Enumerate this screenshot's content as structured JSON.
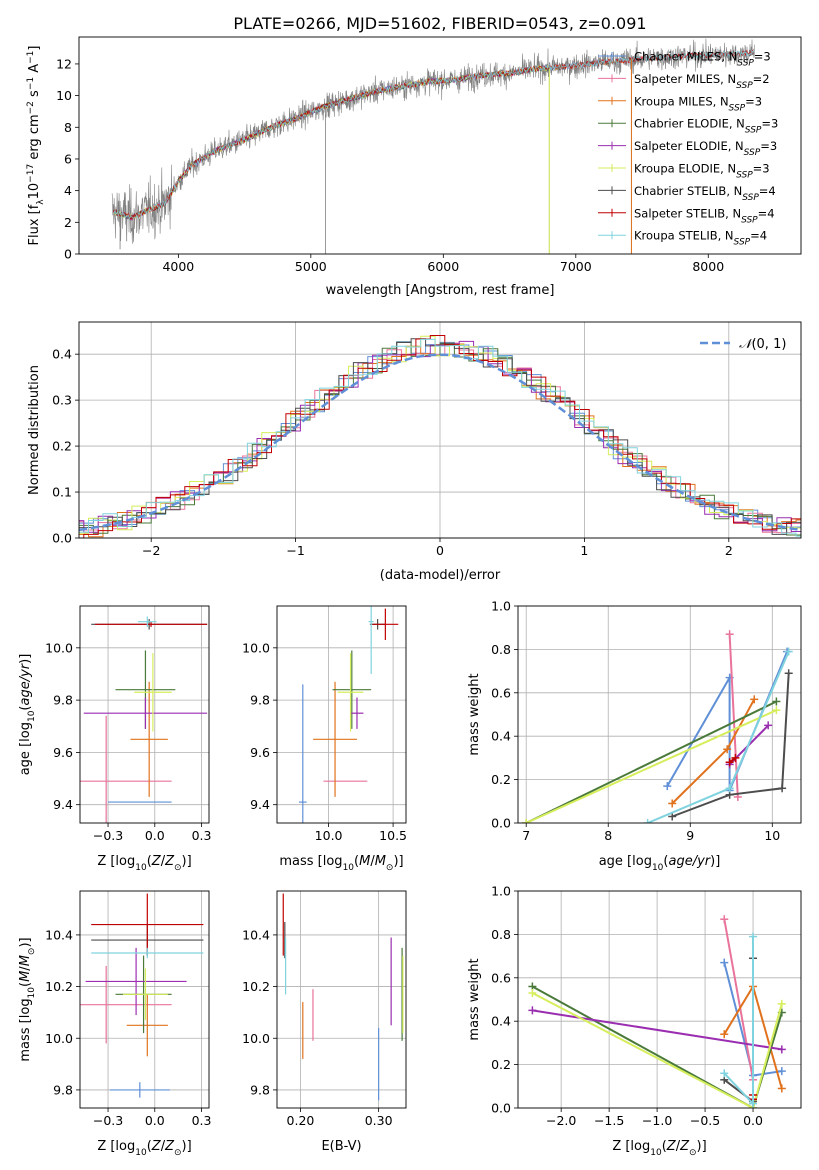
{
  "figure_title": "PLATE=0266, MJD=51602, FIBERID=0543, z=0.091",
  "colors": {
    "Chabrier MILES": "#5f8fd6",
    "Salpeter MILES": "#e8739b",
    "Kroupa MILES": "#e0721d",
    "Chabrier ELODIE": "#4a7a3a",
    "Salpeter ELODIE": "#9a2db0",
    "Kroupa ELODIE": "#d6ee5c",
    "Chabrier STELIB": "#4d4d4d",
    "Salpeter STELIB": "#c00000",
    "Kroupa STELIB": "#7fd3df",
    "data": "#808080",
    "normal": "#5f8fd6"
  },
  "chart_data": [
    {
      "id": "spectrum",
      "type": "line",
      "title": "PLATE=0266, MJD=51602, FIBERID=0543, z=0.091",
      "xlabel": "wavelength [Angstrom, rest frame]",
      "ylabel": "Flux [f_λ 10^-17 erg cm^-2 s^-1 A^-1]",
      "xlim": [
        3250,
        8700
      ],
      "ylim": [
        0,
        13.7
      ],
      "xticks": [
        4000,
        5000,
        6000,
        7000,
        8000
      ],
      "yticks": [
        0,
        2,
        4,
        6,
        8,
        10,
        12
      ],
      "grid": false,
      "legend_position": "upper-right",
      "legend": [
        {
          "base": "Chabrier MILES, N",
          "sub": "SSP",
          "tail": "=3",
          "series": "Chabrier MILES"
        },
        {
          "base": "Salpeter MILES, N",
          "sub": "SSP",
          "tail": "=2",
          "series": "Salpeter MILES"
        },
        {
          "base": "Kroupa MILES, N",
          "sub": "SSP",
          "tail": "=3",
          "series": "Kroupa MILES"
        },
        {
          "base": "Chabrier ELODIE, N",
          "sub": "SSP",
          "tail": "=3",
          "series": "Chabrier ELODIE"
        },
        {
          "base": "Salpeter ELODIE, N",
          "sub": "SSP",
          "tail": "=3",
          "series": "Salpeter ELODIE"
        },
        {
          "base": "Kroupa ELODIE, N",
          "sub": "SSP",
          "tail": "=3",
          "series": "Kroupa ELODIE"
        },
        {
          "base": "Chabrier STELIB, N",
          "sub": "SSP",
          "tail": "=4",
          "series": "Chabrier STELIB"
        },
        {
          "base": "Salpeter STELIB, N",
          "sub": "SSP",
          "tail": "=4",
          "series": "Salpeter STELIB"
        },
        {
          "base": "Kroupa STELIB, N",
          "sub": "SSP",
          "tail": "=4",
          "series": "Kroupa STELIB"
        }
      ],
      "continuum": [
        [
          3500,
          2.7
        ],
        [
          3650,
          2.3
        ],
        [
          3750,
          2.7
        ],
        [
          3900,
          3.2
        ],
        [
          4000,
          4.6
        ],
        [
          4100,
          5.6
        ],
        [
          4300,
          6.6
        ],
        [
          4500,
          7.2
        ],
        [
          4700,
          8.0
        ],
        [
          4900,
          8.6
        ],
        [
          5100,
          9.3
        ],
        [
          5300,
          9.8
        ],
        [
          5500,
          10.3
        ],
        [
          5700,
          10.6
        ],
        [
          5900,
          10.9
        ],
        [
          6100,
          11.0
        ],
        [
          6300,
          11.3
        ],
        [
          6500,
          11.4
        ],
        [
          6700,
          11.7
        ],
        [
          6900,
          11.8
        ],
        [
          7200,
          12.1
        ],
        [
          7500,
          12.3
        ],
        [
          7800,
          12.5
        ],
        [
          8100,
          12.6
        ],
        [
          8350,
          12.7
        ]
      ],
      "spikes": [
        [
          5110,
          0
        ],
        [
          6800,
          0
        ],
        [
          7420,
          0
        ],
        [
          3560,
          0.3
        ],
        [
          3610,
          0.8
        ]
      ]
    },
    {
      "id": "residuals",
      "type": "histogram",
      "xlabel": "(data-model)/error",
      "ylabel": "Normed distribution",
      "xlim": [
        -2.5,
        2.5
      ],
      "ylim": [
        0,
        0.47
      ],
      "xticks": [
        -2,
        -1,
        0,
        1,
        2
      ],
      "yticks": [
        0,
        0.1,
        0.2,
        0.3,
        0.4
      ],
      "grid": true,
      "legend_position": "upper-right",
      "normal_label": "N(0,1)",
      "bin_width": 0.1
    },
    {
      "id": "age_vs_Z",
      "type": "errorbar",
      "xlabel": "Z [log10(Z/Z_sun)]",
      "ylabel": "age [log10(age/yr)]",
      "xlim": [
        -0.4,
        0.29
      ],
      "ylim": [
        9.33,
        10.16
      ],
      "xticks": [
        -0.25,
        0.0,
        0.25
      ],
      "yticks": [
        9.4,
        9.6,
        9.8,
        10.0
      ],
      "grid": true,
      "points": [
        {
          "series": "Chabrier MILES",
          "x": -0.08,
          "xerr": 0.17,
          "y": 9.41,
          "yerr": 0.0
        },
        {
          "series": "Salpeter MILES",
          "x": -0.26,
          "xerr": 0.35,
          "y": 9.49,
          "yerr": 0.25
        },
        {
          "series": "Kroupa MILES",
          "x": -0.03,
          "xerr": 0.1,
          "y": 9.65,
          "yerr": 0.22
        },
        {
          "series": "Chabrier ELODIE",
          "x": -0.05,
          "xerr": 0.16,
          "y": 9.84,
          "yerr": 0.15
        },
        {
          "series": "Salpeter ELODIE",
          "x": -0.05,
          "xerr": 0.33,
          "y": 9.75,
          "yerr": 0.06
        },
        {
          "series": "Kroupa ELODIE",
          "x": -0.01,
          "xerr": 0.1,
          "y": 9.83,
          "yerr": 0.15
        },
        {
          "series": "Chabrier STELIB",
          "x": -0.03,
          "xerr": 0.31,
          "y": 10.09,
          "yerr": 0.02
        },
        {
          "series": "Salpeter STELIB",
          "x": -0.02,
          "xerr": 0.3,
          "y": 10.09,
          "yerr": 0.01
        },
        {
          "series": "Kroupa STELIB",
          "x": -0.04,
          "xerr": 0.05,
          "y": 10.1,
          "yerr": 0.02
        }
      ]
    },
    {
      "id": "age_vs_mass",
      "type": "errorbar",
      "xlabel": "mass [log10(M/M_sun)]",
      "ylabel": "",
      "xlim": [
        9.6,
        10.6
      ],
      "ylim": [
        9.33,
        10.16
      ],
      "xticks": [
        10.0,
        10.5
      ],
      "yticks": [
        9.4,
        9.6,
        9.8,
        10.0
      ],
      "grid": true,
      "points": [
        {
          "series": "Chabrier MILES",
          "x": 9.8,
          "xerr": 0.03,
          "y": 9.41,
          "yerr": 0.45
        },
        {
          "series": "Salpeter MILES",
          "x": 10.13,
          "xerr": 0.17,
          "y": 9.49,
          "yerr": 0.0
        },
        {
          "series": "Kroupa MILES",
          "x": 10.05,
          "xerr": 0.17,
          "y": 9.65,
          "yerr": 0.22
        },
        {
          "series": "Chabrier ELODIE",
          "x": 10.18,
          "xerr": 0.15,
          "y": 9.84,
          "yerr": 0.15
        },
        {
          "series": "Salpeter ELODIE",
          "x": 10.22,
          "xerr": 0.05,
          "y": 9.75,
          "yerr": 0.06
        },
        {
          "series": "Kroupa ELODIE",
          "x": 10.17,
          "xerr": 0.1,
          "y": 9.83,
          "yerr": 0.15
        },
        {
          "series": "Chabrier STELIB",
          "x": 10.38,
          "xerr": 0.06,
          "y": 10.09,
          "yerr": 0.02
        },
        {
          "series": "Salpeter STELIB",
          "x": 10.44,
          "xerr": 0.1,
          "y": 10.09,
          "yerr": 0.06
        },
        {
          "series": "Kroupa STELIB",
          "x": 10.33,
          "xerr": 0.02,
          "y": 10.1,
          "yerr": 0.2
        }
      ]
    },
    {
      "id": "weight_vs_age",
      "type": "line",
      "xlabel": "age [log10(age/yr)]",
      "ylabel": "mass weight",
      "xlim": [
        6.9,
        10.35
      ],
      "ylim": [
        0,
        1.0
      ],
      "xticks": [
        7,
        8,
        9,
        10
      ],
      "yticks": [
        0.0,
        0.2,
        0.4,
        0.6,
        0.8,
        1.0
      ],
      "grid": true,
      "series": [
        {
          "name": "Chabrier MILES",
          "points": [
            [
              8.72,
              0.17
            ],
            [
              9.48,
              0.67
            ],
            [
              9.48,
              0.15
            ],
            [
              10.18,
              0.79
            ]
          ]
        },
        {
          "name": "Salpeter MILES",
          "points": [
            [
              9.48,
              0.87
            ],
            [
              9.58,
              0.12
            ]
          ]
        },
        {
          "name": "Kroupa MILES",
          "points": [
            [
              8.78,
              0.09
            ],
            [
              9.45,
              0.34
            ],
            [
              9.78,
              0.57
            ]
          ]
        },
        {
          "name": "Chabrier ELODIE",
          "points": [
            [
              7.0,
              0.0
            ],
            [
              10.05,
              0.56
            ]
          ]
        },
        {
          "name": "Salpeter ELODIE",
          "points": [
            [
              9.48,
              0.27
            ],
            [
              9.95,
              0.45
            ]
          ]
        },
        {
          "name": "Kroupa ELODIE",
          "points": [
            [
              7.0,
              0.0
            ],
            [
              10.05,
              0.52
            ]
          ]
        },
        {
          "name": "Chabrier STELIB",
          "points": [
            [
              8.78,
              0.03
            ],
            [
              9.48,
              0.13
            ],
            [
              10.12,
              0.16
            ],
            [
              10.2,
              0.69
            ]
          ]
        },
        {
          "name": "Salpeter STELIB",
          "points": [
            [
              9.48,
              0.28
            ],
            [
              9.55,
              0.3
            ]
          ]
        },
        {
          "name": "Kroupa STELIB",
          "points": [
            [
              8.48,
              0.0
            ],
            [
              9.48,
              0.16
            ],
            [
              10.2,
              0.79
            ]
          ]
        }
      ]
    },
    {
      "id": "mass_vs_Z",
      "type": "errorbar",
      "xlabel": "Z [log10(Z/Z_sun)]",
      "ylabel": "mass [log10(M/M_sun)]",
      "xlim": [
        -0.4,
        0.29
      ],
      "ylim": [
        9.73,
        10.57
      ],
      "xticks": [
        -0.25,
        0.0,
        0.25
      ],
      "yticks": [
        9.8,
        10.0,
        10.2,
        10.4
      ],
      "grid": true,
      "points": [
        {
          "series": "Chabrier MILES",
          "x": -0.08,
          "xerr": 0.16,
          "y": 9.8,
          "yerr": 0.03
        },
        {
          "series": "Salpeter MILES",
          "x": -0.26,
          "xerr": 0.35,
          "y": 10.13,
          "yerr": 0.15
        },
        {
          "series": "Kroupa MILES",
          "x": -0.04,
          "xerr": 0.11,
          "y": 10.05,
          "yerr": 0.12
        },
        {
          "series": "Chabrier ELODIE",
          "x": -0.06,
          "xerr": 0.15,
          "y": 10.17,
          "yerr": 0.15
        },
        {
          "series": "Salpeter ELODIE",
          "x": -0.1,
          "xerr": 0.27,
          "y": 10.22,
          "yerr": 0.13
        },
        {
          "series": "Kroupa ELODIE",
          "x": -0.05,
          "xerr": 0.12,
          "y": 10.17,
          "yerr": 0.1
        },
        {
          "series": "Chabrier STELIB",
          "x": -0.04,
          "xerr": 0.3,
          "y": 10.38,
          "yerr": 0.06
        },
        {
          "series": "Salpeter STELIB",
          "x": -0.04,
          "xerr": 0.3,
          "y": 10.44,
          "yerr": 0.12
        },
        {
          "series": "Kroupa STELIB",
          "x": -0.04,
          "xerr": 0.3,
          "y": 10.33,
          "yerr": 0.02
        }
      ]
    },
    {
      "id": "mass_vs_EBV",
      "type": "errorbar",
      "xlabel": "E(B-V)",
      "ylabel": "",
      "xlim": [
        0.17,
        0.335
      ],
      "ylim": [
        9.73,
        10.57
      ],
      "xticks": [
        0.2,
        0.3
      ],
      "yticks": [
        9.8,
        10.0,
        10.2,
        10.4
      ],
      "grid": true,
      "points": [
        {
          "series": "Chabrier MILES",
          "x": 0.3,
          "xerr": 0.0,
          "y": 9.9,
          "yerr": 0.14
        },
        {
          "series": "Salpeter MILES",
          "x": 0.216,
          "xerr": 0.0,
          "y": 10.09,
          "yerr": 0.1
        },
        {
          "series": "Kroupa MILES",
          "x": 0.203,
          "xerr": 0.0,
          "y": 10.03,
          "yerr": 0.11
        },
        {
          "series": "Chabrier ELODIE",
          "x": 0.33,
          "xerr": 0.0,
          "y": 10.17,
          "yerr": 0.18
        },
        {
          "series": "Salpeter ELODIE",
          "x": 0.316,
          "xerr": 0.0,
          "y": 10.22,
          "yerr": 0.17
        },
        {
          "series": "Kroupa ELODIE",
          "x": 0.331,
          "xerr": 0.0,
          "y": 10.17,
          "yerr": 0.15
        },
        {
          "series": "Chabrier STELIB",
          "x": 0.18,
          "xerr": 0.0,
          "y": 10.38,
          "yerr": 0.07
        },
        {
          "series": "Salpeter STELIB",
          "x": 0.178,
          "xerr": 0.0,
          "y": 10.44,
          "yerr": 0.12
        },
        {
          "series": "Kroupa STELIB",
          "x": 0.181,
          "xerr": 0.0,
          "y": 10.28,
          "yerr": 0.11
        }
      ]
    },
    {
      "id": "weight_vs_Z",
      "type": "line",
      "xlabel": "Z [log10(Z/Z_sun)]",
      "ylabel": "mass weight",
      "xlim": [
        -2.45,
        0.5
      ],
      "ylim": [
        0,
        1.0
      ],
      "xticks": [
        -2.0,
        -1.5,
        -1.0,
        -0.5,
        0.0
      ],
      "yticks": [
        0.0,
        0.2,
        0.4,
        0.6,
        0.8,
        1.0
      ],
      "grid": true,
      "series": [
        {
          "name": "Chabrier MILES",
          "points": [
            [
              -0.3,
              0.67
            ],
            [
              0.0,
              0.15
            ],
            [
              0.3,
              0.17
            ]
          ]
        },
        {
          "name": "Salpeter MILES",
          "points": [
            [
              -0.3,
              0.87
            ],
            [
              0.0,
              0.13
            ]
          ]
        },
        {
          "name": "Kroupa MILES",
          "points": [
            [
              -0.3,
              0.34
            ],
            [
              0.0,
              0.56
            ],
            [
              0.3,
              0.09
            ]
          ]
        },
        {
          "name": "Chabrier ELODIE",
          "points": [
            [
              -2.3,
              0.56
            ],
            [
              0.0,
              0.0
            ],
            [
              0.3,
              0.44
            ]
          ]
        },
        {
          "name": "Salpeter ELODIE",
          "points": [
            [
              -2.3,
              0.45
            ],
            [
              0.3,
              0.27
            ]
          ]
        },
        {
          "name": "Kroupa ELODIE",
          "points": [
            [
              -2.3,
              0.53
            ],
            [
              0.0,
              0.0
            ],
            [
              0.3,
              0.48
            ]
          ]
        },
        {
          "name": "Chabrier STELIB",
          "points": [
            [
              -0.3,
              0.13
            ],
            [
              0.0,
              0.03
            ],
            [
              0.0,
              0.69
            ]
          ]
        },
        {
          "name": "Salpeter STELIB",
          "points": [
            [
              0.0,
              0.04
            ],
            [
              0.0,
              0.06
            ]
          ]
        },
        {
          "name": "Kroupa STELIB",
          "points": [
            [
              -0.3,
              0.16
            ],
            [
              0.0,
              0.02
            ],
            [
              0.0,
              0.79
            ]
          ]
        }
      ]
    }
  ]
}
